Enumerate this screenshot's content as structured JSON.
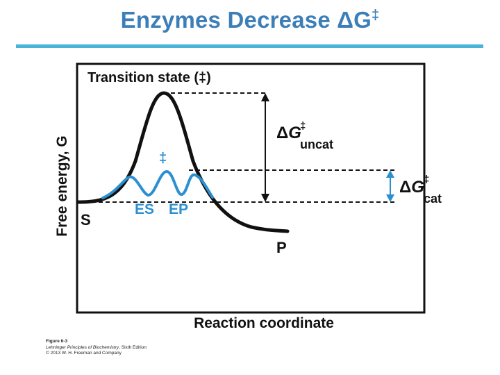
{
  "title": {
    "main": "Enzymes Decrease ΔG",
    "superscript": "‡"
  },
  "diagram": {
    "y_axis_label": "Free energy, G",
    "x_axis_label": "Reaction coordinate",
    "transition_state_label": "Transition state (‡)",
    "catalyzed_ts_label": "‡",
    "substrate_label": "S",
    "product_label": "P",
    "es_label": "ES",
    "ep_label": "EP",
    "dg_uncat": {
      "delta": "Δ",
      "symbol": "G",
      "sup": "‡",
      "sub": "uncat"
    },
    "dg_cat": {
      "delta": "Δ",
      "symbol": "G",
      "sup": "‡",
      "sub": "cat"
    },
    "colors": {
      "uncatalyzed_curve": "#111111",
      "catalyzed_curve": "#2b8fd0",
      "cat_arrow": "#2b8fd0",
      "title": "#3c7fb8",
      "title_rule": "#4ab3d8"
    }
  },
  "credit": {
    "figure": "Figure 6-3",
    "book": "Lehninger Principles of Biochemistry",
    "edition": ", Sixth Edition",
    "copyright": "© 2013 W. H. Freeman and Company"
  }
}
